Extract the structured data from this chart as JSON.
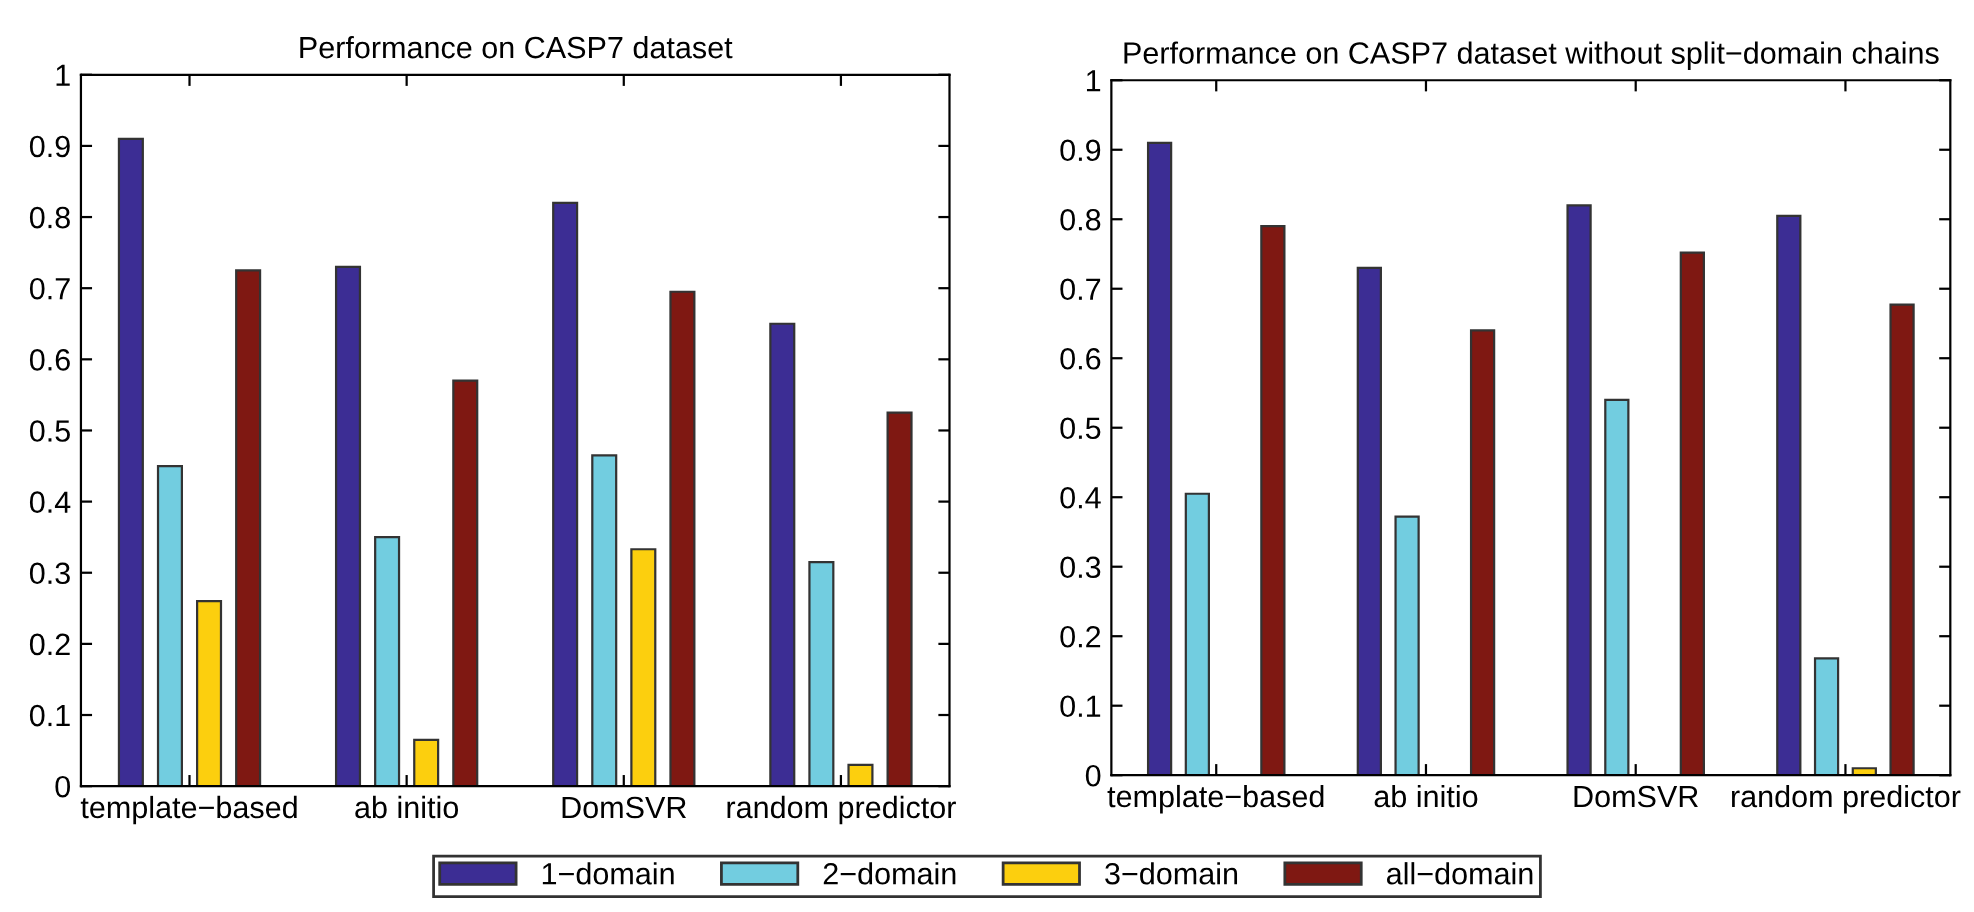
{
  "chart_data": [
    {
      "type": "bar",
      "title": "Performance on CASP7 dataset",
      "categories": [
        "template−based",
        "ab initio",
        "DomSVR",
        "random predictor"
      ],
      "ylim": [
        0,
        1
      ],
      "yticks": [
        0,
        0.1,
        0.2,
        0.3,
        0.4,
        0.5,
        0.6,
        0.7,
        0.8,
        0.9,
        1
      ],
      "grid": false,
      "legend": "bottom",
      "series": [
        {
          "name": "1−domain",
          "color": "#3c2d94",
          "values": [
            0.91,
            0.73,
            0.82,
            0.65
          ]
        },
        {
          "name": "2−domain",
          "color": "#72cde0",
          "values": [
            0.45,
            0.35,
            0.465,
            0.315
          ]
        },
        {
          "name": "3−domain",
          "color": "#fccf0e",
          "values": [
            0.26,
            0.065,
            0.333,
            0.03
          ]
        },
        {
          "name": "all−domain",
          "color": "#7f1812",
          "values": [
            0.725,
            0.57,
            0.695,
            0.525
          ]
        }
      ]
    },
    {
      "type": "bar",
      "title": "Performance on CASP7 dataset without split−domain chains",
      "categories": [
        "template−based",
        "ab initio",
        "DomSVR",
        "random predictor"
      ],
      "ylim": [
        0,
        1
      ],
      "yticks": [
        0,
        0.1,
        0.2,
        0.3,
        0.4,
        0.5,
        0.6,
        0.7,
        0.8,
        0.9,
        1
      ],
      "grid": false,
      "series": [
        {
          "color": "#3c2d94",
          "values": [
            0.91,
            0.73,
            0.82,
            0.805
          ]
        },
        {
          "color": "#72cde0",
          "values": [
            0.405,
            0.372,
            0.54,
            0.168
          ]
        },
        {
          "color": "#fccf0e",
          "values": [
            0,
            0,
            0,
            0.01
          ]
        },
        {
          "color": "#7f1812",
          "values": [
            0.79,
            0.64,
            0.752,
            0.677
          ]
        }
      ]
    }
  ]
}
